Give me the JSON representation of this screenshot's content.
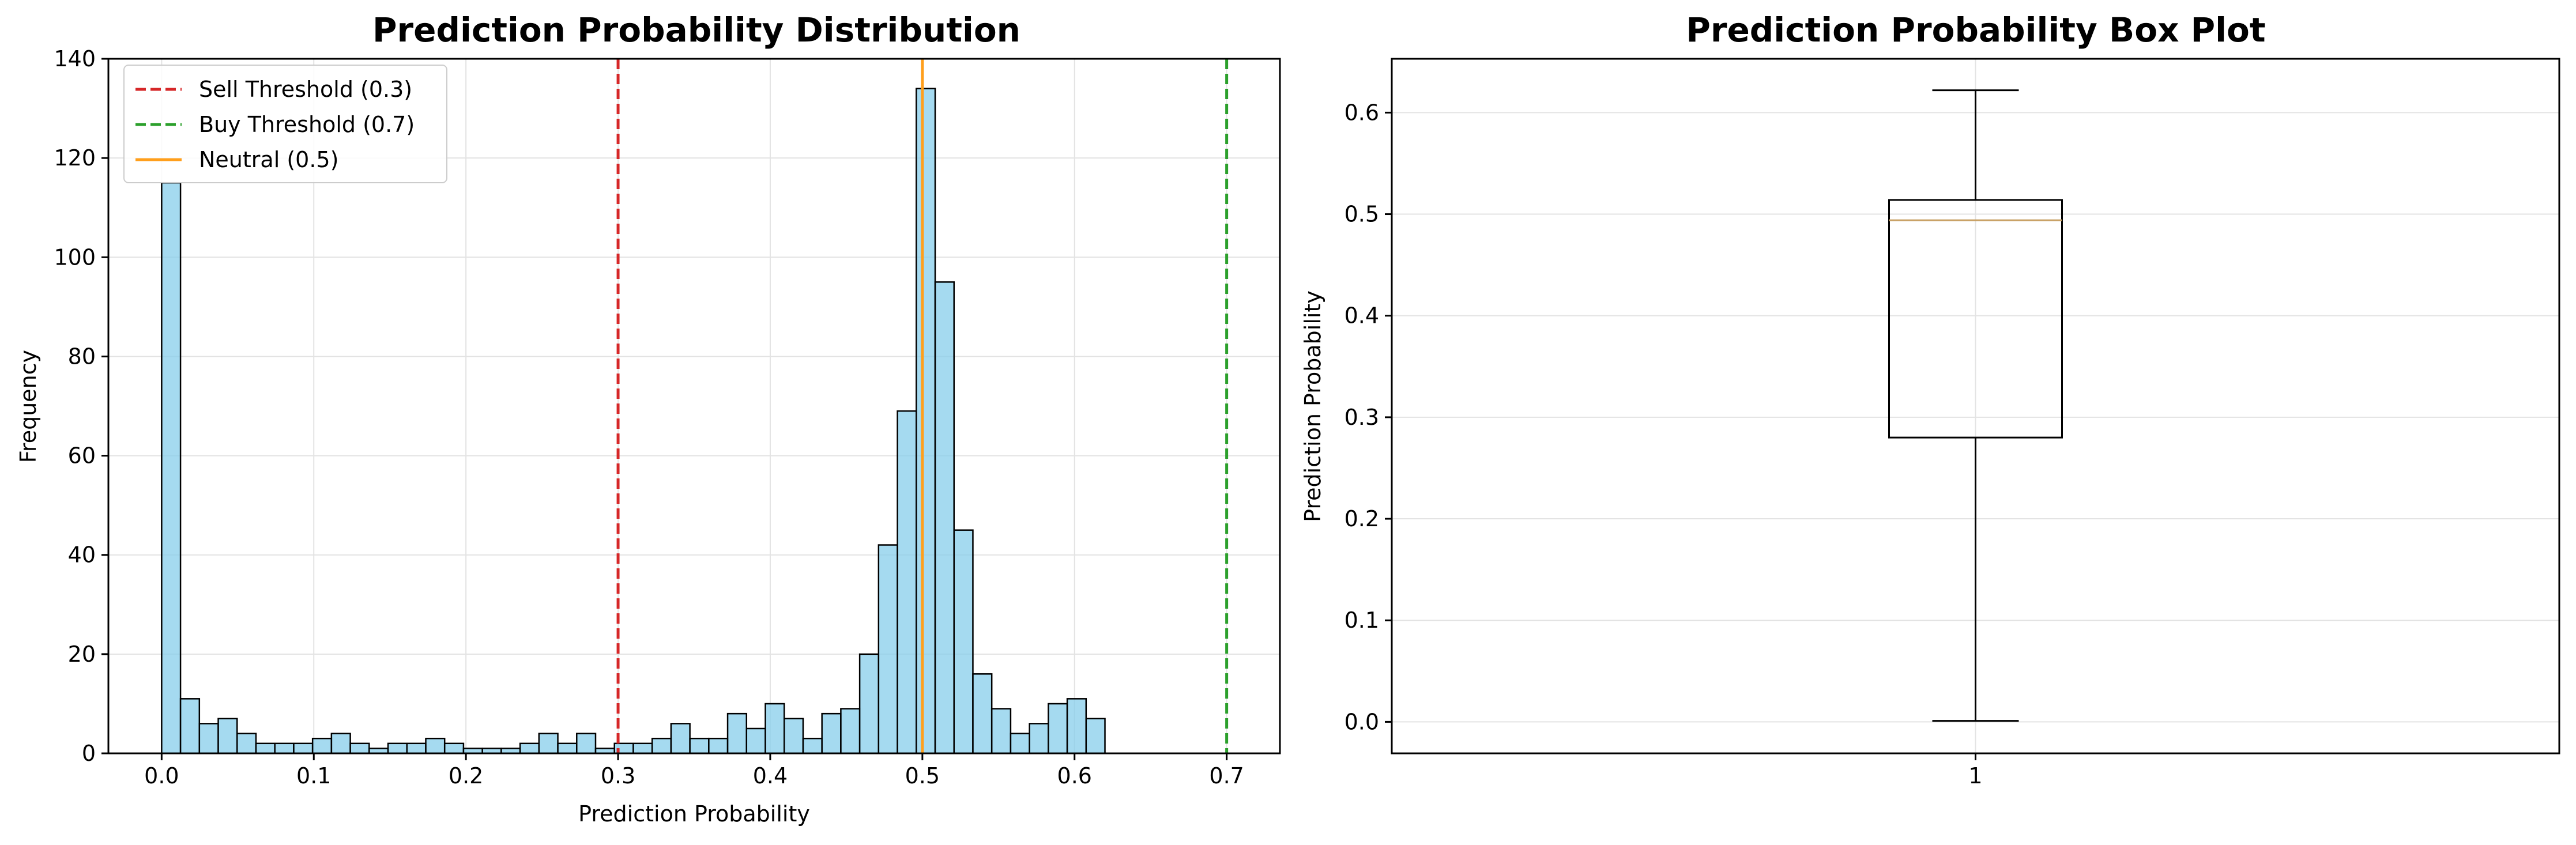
{
  "chart_data": [
    {
      "type": "bar",
      "subtype": "histogram",
      "title": "Prediction Probability Distribution",
      "xlabel": "Prediction Probability",
      "ylabel": "Frequency",
      "xlim": [
        -0.035,
        0.735
      ],
      "ylim": [
        0,
        140
      ],
      "xticks": [
        0.0,
        0.1,
        0.2,
        0.3,
        0.4,
        0.5,
        0.6,
        0.7
      ],
      "yticks": [
        0,
        20,
        40,
        60,
        80,
        100,
        120,
        140
      ],
      "grid": true,
      "bar_color": "#87ceeb",
      "bar_edge_color": "#000000",
      "bin_width": 0.0124,
      "bins_start": [
        0.0,
        0.0124,
        0.0248,
        0.0372,
        0.0496,
        0.062,
        0.0744,
        0.0868,
        0.0992,
        0.1116,
        0.124,
        0.1364,
        0.1488,
        0.1612,
        0.1736,
        0.186,
        0.1984,
        0.2108,
        0.2232,
        0.2356,
        0.248,
        0.2604,
        0.2728,
        0.2852,
        0.2976,
        0.31,
        0.3224,
        0.3348,
        0.3472,
        0.3596,
        0.372,
        0.3844,
        0.3968,
        0.4092,
        0.4216,
        0.434,
        0.4464,
        0.4588,
        0.4712,
        0.4836,
        0.496,
        0.5084,
        0.5208,
        0.5332,
        0.5456,
        0.558,
        0.5704,
        0.5828,
        0.5952,
        0.6076
      ],
      "values": [
        115,
        11,
        6,
        7,
        4,
        2,
        2,
        2,
        3,
        4,
        2,
        1,
        2,
        2,
        3,
        2,
        1,
        1,
        1,
        2,
        4,
        2,
        4,
        1,
        2,
        2,
        3,
        6,
        3,
        3,
        8,
        5,
        10,
        7,
        3,
        8,
        9,
        20,
        42,
        69,
        134,
        95,
        45,
        16,
        9,
        4,
        6,
        10,
        11,
        7
      ],
      "reference_lines": [
        {
          "name": "Sell Threshold (0.3)",
          "x": 0.3,
          "color": "#d62728",
          "style": "dashed"
        },
        {
          "name": "Buy Threshold (0.7)",
          "x": 0.7,
          "color": "#2ca02c",
          "style": "dashed"
        },
        {
          "name": "Neutral (0.5)",
          "x": 0.5,
          "color": "#ff9f1c",
          "style": "solid"
        }
      ],
      "legend_position": "top-left"
    },
    {
      "type": "box",
      "title": "Prediction Probability Box Plot",
      "xlabel": "",
      "ylabel": "Prediction Probability",
      "categories": [
        "1"
      ],
      "ylim": [
        -0.031,
        0.653
      ],
      "yticks": [
        0.0,
        0.1,
        0.2,
        0.3,
        0.4,
        0.5,
        0.6
      ],
      "grid": true,
      "box": {
        "min": 0.001,
        "q1": 0.28,
        "median": 0.494,
        "q3": 0.514,
        "max": 0.622
      },
      "median_color": "#c8a064"
    }
  ]
}
